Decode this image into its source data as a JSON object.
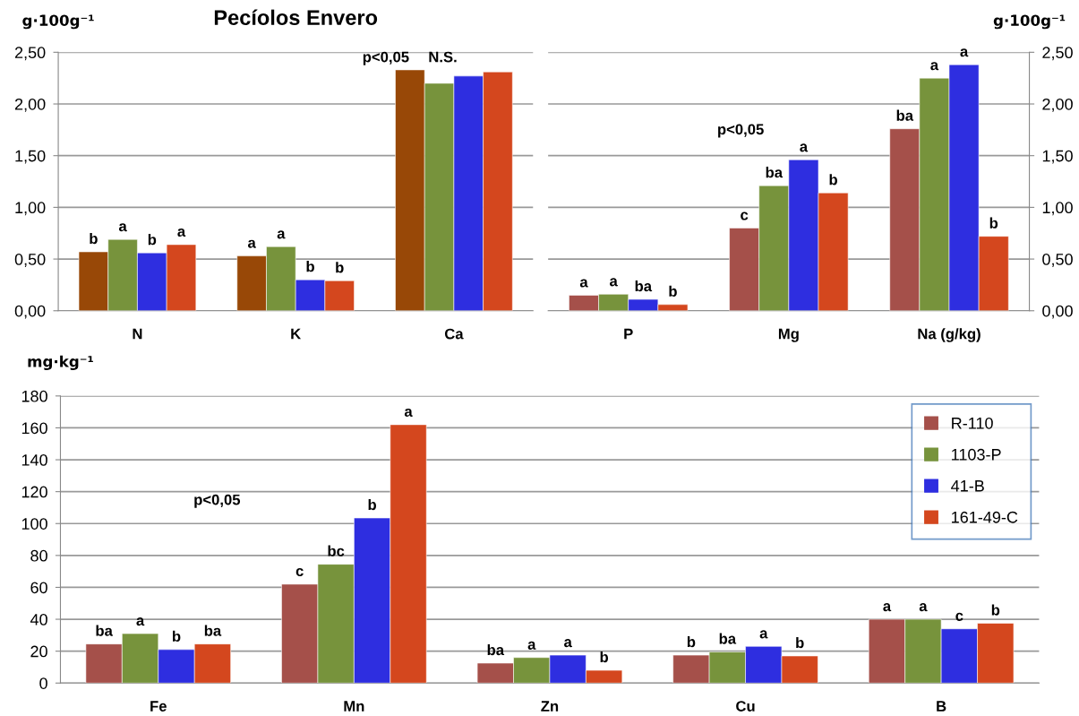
{
  "chart_data": [
    {
      "type": "bar",
      "title": "Pecíolos Envero",
      "ylabel": "g·100g⁻¹",
      "categories": [
        "N",
        "K",
        "Ca"
      ],
      "series": [
        {
          "color": "#984807",
          "values": [
            0.57,
            0.53,
            2.33
          ],
          "value_labels": [
            "b",
            "a",
            null
          ]
        },
        {
          "color": "#77933c",
          "values": [
            0.69,
            0.62,
            2.2
          ],
          "value_labels": [
            "a",
            "a",
            null
          ]
        },
        {
          "color": "#2e2ee0",
          "values": [
            0.56,
            0.3,
            2.27
          ],
          "value_labels": [
            "b",
            "b",
            null
          ]
        },
        {
          "color": "#d4471e",
          "values": [
            0.64,
            0.29,
            2.31
          ],
          "value_labels": [
            "a",
            "b",
            null
          ]
        }
      ],
      "ylim": [
        0,
        2.5
      ],
      "yticks": [
        {
          "value": 0,
          "label": "0,00"
        },
        {
          "value": 0.5,
          "label": "0,50"
        },
        {
          "value": 1,
          "label": "1,00"
        },
        {
          "value": 1.5,
          "label": "1,50"
        },
        {
          "value": 2,
          "label": "2,00"
        },
        {
          "value": 2.5,
          "label": "2,50"
        }
      ],
      "grid": "y",
      "annotations": [
        "p<0,05",
        "N.S."
      ]
    },
    {
      "type": "bar",
      "y2label": "g·100g⁻¹",
      "categories": [
        "P",
        "Mg",
        "Na (g/kg)"
      ],
      "series": [
        {
          "color": "#a5504a",
          "axis": "y2",
          "values": [
            0.15,
            0.8,
            1.76
          ],
          "value_labels": [
            "a",
            "c",
            "ba"
          ]
        },
        {
          "color": "#77933c",
          "axis": "y2",
          "values": [
            0.16,
            1.21,
            2.25
          ],
          "value_labels": [
            "a",
            "ba",
            "a"
          ]
        },
        {
          "color": "#2e2ee0",
          "axis": "y2",
          "values": [
            0.11,
            1.46,
            2.38
          ],
          "value_labels": [
            "ba",
            "a",
            "a"
          ]
        },
        {
          "color": "#d4471e",
          "axis": "y2",
          "values": [
            0.06,
            1.14,
            0.72
          ],
          "value_labels": [
            "b",
            "b",
            "b"
          ]
        }
      ],
      "y2lim": [
        0,
        2.5
      ],
      "y2ticks": [
        {
          "value": 0,
          "label": "0,00"
        },
        {
          "value": 0.5,
          "label": "0,50"
        },
        {
          "value": 1,
          "label": "1,00"
        },
        {
          "value": 1.5,
          "label": "1,50"
        },
        {
          "value": 2,
          "label": "2,00"
        },
        {
          "value": 2.5,
          "label": "2,50"
        }
      ],
      "grid": "y",
      "annotations": [
        "p<0,05"
      ]
    },
    {
      "type": "bar",
      "ylabel": "mg·kg⁻¹",
      "categories": [
        "Fe",
        "Mn",
        "Zn",
        "Cu",
        "B"
      ],
      "series": [
        {
          "name": "R-110",
          "color": "#a5504a",
          "values": [
            24.5,
            62,
            12.5,
            17.5,
            40
          ],
          "value_labels": [
            "ba",
            "c",
            "ba",
            "b",
            "a"
          ]
        },
        {
          "name": "1103-P",
          "color": "#77933c",
          "values": [
            31,
            74.5,
            16,
            19.5,
            40
          ],
          "value_labels": [
            "a",
            "bc",
            "a",
            "ba",
            "a"
          ]
        },
        {
          "name": "41-B",
          "color": "#2e2ee0",
          "values": [
            21,
            103.5,
            17.5,
            23,
            34
          ],
          "value_labels": [
            "b",
            "b",
            "a",
            "a",
            "c"
          ]
        },
        {
          "name": "161-49-C",
          "color": "#d4471e",
          "values": [
            24.5,
            162,
            8,
            17,
            37.5
          ],
          "value_labels": [
            "ba",
            "a",
            "b",
            "b",
            "b"
          ]
        }
      ],
      "ylim": [
        0,
        180
      ],
      "yticks": [
        0,
        20,
        40,
        60,
        80,
        100,
        120,
        140,
        160,
        180
      ],
      "grid": "y",
      "legend": "top right",
      "annotations": [
        "p<0,05"
      ]
    }
  ]
}
